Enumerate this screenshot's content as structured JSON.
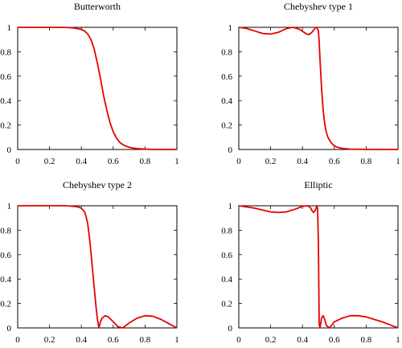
{
  "chart_data": [
    {
      "type": "line",
      "title": "Butterworth",
      "xlim": [
        0,
        1
      ],
      "ylim": [
        0,
        1
      ],
      "xticks": [
        "0",
        "0.2",
        "0.4",
        "0.6",
        "0.8",
        "1"
      ],
      "yticks": [
        "0",
        "0.2",
        "0.4",
        "0.6",
        "0.8",
        "1"
      ],
      "grid": false,
      "color": "#e60000",
      "series": [
        {
          "x": [
            0,
            0.1,
            0.2,
            0.3,
            0.35,
            0.4,
            0.42,
            0.44,
            0.46,
            0.48,
            0.5,
            0.52,
            0.54,
            0.56,
            0.58,
            0.6,
            0.62,
            0.64,
            0.66,
            0.68,
            0.7,
            0.72,
            0.75,
            0.8,
            0.85,
            0.9,
            1
          ],
          "y": [
            1,
            1,
            1,
            0.999,
            0.995,
            0.983,
            0.97,
            0.945,
            0.9,
            0.825,
            0.71,
            0.58,
            0.44,
            0.32,
            0.22,
            0.145,
            0.095,
            0.06,
            0.04,
            0.027,
            0.018,
            0.012,
            0.007,
            0.003,
            0.001,
            0,
            0
          ]
        }
      ]
    },
    {
      "type": "line",
      "title": "Chebyshev type 1",
      "xlim": [
        0,
        1
      ],
      "ylim": [
        0,
        1
      ],
      "xticks": [
        "0",
        "0.2",
        "0.4",
        "0.6",
        "0.8",
        "1"
      ],
      "yticks": [
        "0",
        "0.2",
        "0.4",
        "0.6",
        "0.8",
        "1"
      ],
      "grid": false,
      "color": "#e60000",
      "series": [
        {
          "x": [
            0,
            0.05,
            0.1,
            0.15,
            0.2,
            0.25,
            0.3,
            0.34,
            0.38,
            0.42,
            0.44,
            0.46,
            0.48,
            0.49,
            0.5,
            0.505,
            0.51,
            0.52,
            0.53,
            0.54,
            0.55,
            0.56,
            0.58,
            0.6,
            0.62,
            0.65,
            0.7,
            0.8,
            1
          ],
          "y": [
            1,
            0.99,
            0.97,
            0.95,
            0.945,
            0.96,
            0.99,
            1,
            0.985,
            0.95,
            0.94,
            0.96,
            0.995,
            1,
            0.97,
            0.88,
            0.74,
            0.5,
            0.32,
            0.21,
            0.14,
            0.1,
            0.055,
            0.03,
            0.018,
            0.009,
            0.003,
            0.001,
            0
          ]
        }
      ]
    },
    {
      "type": "line",
      "title": "Chebyshev type 2",
      "xlim": [
        0,
        1
      ],
      "ylim": [
        0,
        1
      ],
      "xticks": [
        "0",
        "0.2",
        "0.4",
        "0.6",
        "0.8",
        "1"
      ],
      "yticks": [
        "0",
        "0.2",
        "0.4",
        "0.6",
        "0.8",
        "1"
      ],
      "grid": false,
      "color": "#e60000",
      "series": [
        {
          "x": [
            0,
            0.1,
            0.2,
            0.3,
            0.35,
            0.38,
            0.4,
            0.42,
            0.43,
            0.44,
            0.45,
            0.46,
            0.47,
            0.48,
            0.49,
            0.5,
            0.51,
            0.52,
            0.53,
            0.55,
            0.57,
            0.6,
            0.63,
            0.66,
            0.7,
            0.75,
            0.8,
            0.85,
            0.9,
            0.95,
            1
          ],
          "y": [
            1,
            1,
            1,
            1,
            0.995,
            0.99,
            0.98,
            0.95,
            0.91,
            0.85,
            0.75,
            0.62,
            0.48,
            0.34,
            0.2,
            0.08,
            0,
            0.05,
            0.08,
            0.1,
            0.09,
            0.05,
            0.01,
            0,
            0.04,
            0.08,
            0.1,
            0.095,
            0.07,
            0.035,
            0
          ]
        }
      ]
    },
    {
      "type": "line",
      "title": "Elliptic",
      "xlim": [
        0,
        1
      ],
      "ylim": [
        0,
        1
      ],
      "xticks": [
        "0",
        "0.2",
        "0.4",
        "0.6",
        "0.8",
        "1"
      ],
      "yticks": [
        "0",
        "0.2",
        "0.4",
        "0.6",
        "0.8",
        "1"
      ],
      "grid": false,
      "color": "#e60000",
      "series": [
        {
          "x": [
            0,
            0.05,
            0.1,
            0.15,
            0.2,
            0.25,
            0.3,
            0.35,
            0.4,
            0.43,
            0.45,
            0.46,
            0.47,
            0.48,
            0.49,
            0.495,
            0.5,
            0.503,
            0.505,
            0.51,
            0.52,
            0.53,
            0.54,
            0.55,
            0.57,
            0.6,
            0.65,
            0.7,
            0.75,
            0.8,
            0.85,
            0.9,
            0.95,
            1
          ],
          "y": [
            1,
            0.99,
            0.98,
            0.965,
            0.95,
            0.945,
            0.95,
            0.97,
            0.995,
            1,
            0.985,
            0.96,
            0.945,
            0.96,
            1,
            0.98,
            0.7,
            0.3,
            0.03,
            0,
            0.08,
            0.1,
            0.07,
            0.02,
            0,
            0.05,
            0.08,
            0.1,
            0.1,
            0.09,
            0.07,
            0.05,
            0.025,
            0
          ]
        }
      ]
    }
  ]
}
